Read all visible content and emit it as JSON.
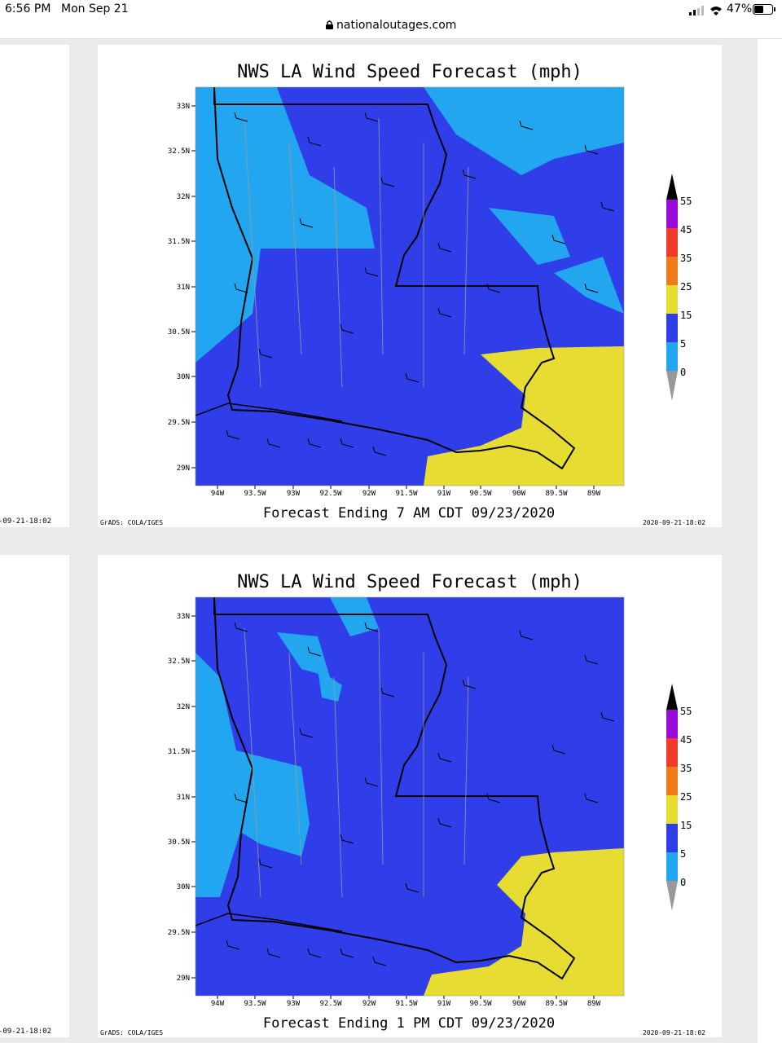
{
  "status_bar": {
    "time": "6:56 PM",
    "date": "Mon Sep 21",
    "battery": "47%"
  },
  "address_bar": {
    "url": "nationaloutages.com"
  },
  "panels": [
    {
      "title": "NWS LA Wind Speed Forecast (mph)",
      "lat_labels": [
        "33N",
        "32.5N",
        "32N",
        "31.5N",
        "31N",
        "30.5N",
        "30N",
        "29.5N",
        "29N"
      ],
      "lon_labels": [
        "94W",
        "93.5W",
        "93W",
        "92.5W",
        "92W",
        "91.5W",
        "91W",
        "90.5W",
        "90W",
        "89.5W",
        "89W"
      ],
      "legend_labels": [
        "55",
        "45",
        "35",
        "25",
        "15",
        "5",
        "0"
      ],
      "footer": "Forecast Ending 7 AM CDT 09/23/2020",
      "credit": "GrADS: COLA/IGES",
      "timestamp": "2020-09-21-18:02",
      "side_timestamp": "-09-21-18:02"
    },
    {
      "title": "NWS LA Wind Speed Forecast (mph)",
      "lat_labels": [
        "33N",
        "32.5N",
        "32N",
        "31.5N",
        "31N",
        "30.5N",
        "30N",
        "29.5N",
        "29N"
      ],
      "lon_labels": [
        "94W",
        "93.5W",
        "93W",
        "92.5W",
        "92W",
        "91.5W",
        "91W",
        "90.5W",
        "90W",
        "89.5W",
        "89W"
      ],
      "legend_labels": [
        "55",
        "45",
        "35",
        "25",
        "15",
        "5",
        "0"
      ],
      "footer": "Forecast Ending 1 PM CDT 09/23/2020",
      "credit": "GrADS: COLA/IGES",
      "timestamp": "2020-09-21-18:02",
      "side_timestamp": "-09-21-18:02"
    }
  ]
}
